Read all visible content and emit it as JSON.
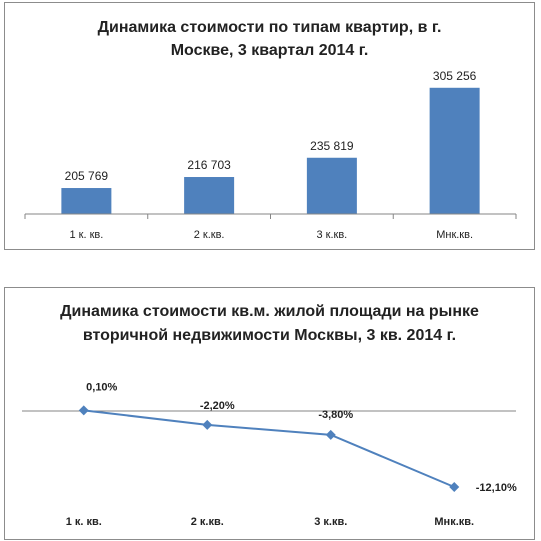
{
  "charts": [
    {
      "title": "Динамика стоимости по типам квартир, в г. Москве, 3 квартал 2014 г.",
      "chart_data": {
        "type": "bar",
        "categories": [
          "1 к. кв.",
          "2 к.кв.",
          "3 к.кв.",
          "Мнк.кв."
        ],
        "values": [
          205769,
          216703,
          235819,
          305256
        ],
        "value_labels": [
          "205 769",
          "216 703",
          "235 819",
          "305 256"
        ],
        "ylim": [
          180000,
          310000
        ],
        "grid": false,
        "legend": "none",
        "bar_color": "#4f81bd"
      }
    },
    {
      "title": "Динамика стоимости кв.м. жилой площади на рынке вторичной недвижимости Москвы, 3 кв. 2014 г.",
      "chart_data": {
        "type": "line",
        "categories": [
          "1 к. кв.",
          "2 к.кв.",
          "3 к.кв.",
          "Мнк.кв."
        ],
        "values": [
          0.1,
          -2.2,
          -3.8,
          -12.1
        ],
        "value_labels": [
          "0,10%",
          "-2,20%",
          "-3,80%",
          "-12,10%"
        ],
        "ylim": [
          -13,
          2
        ],
        "grid": false,
        "legend": "none",
        "line_color": "#4f81bd"
      }
    }
  ]
}
